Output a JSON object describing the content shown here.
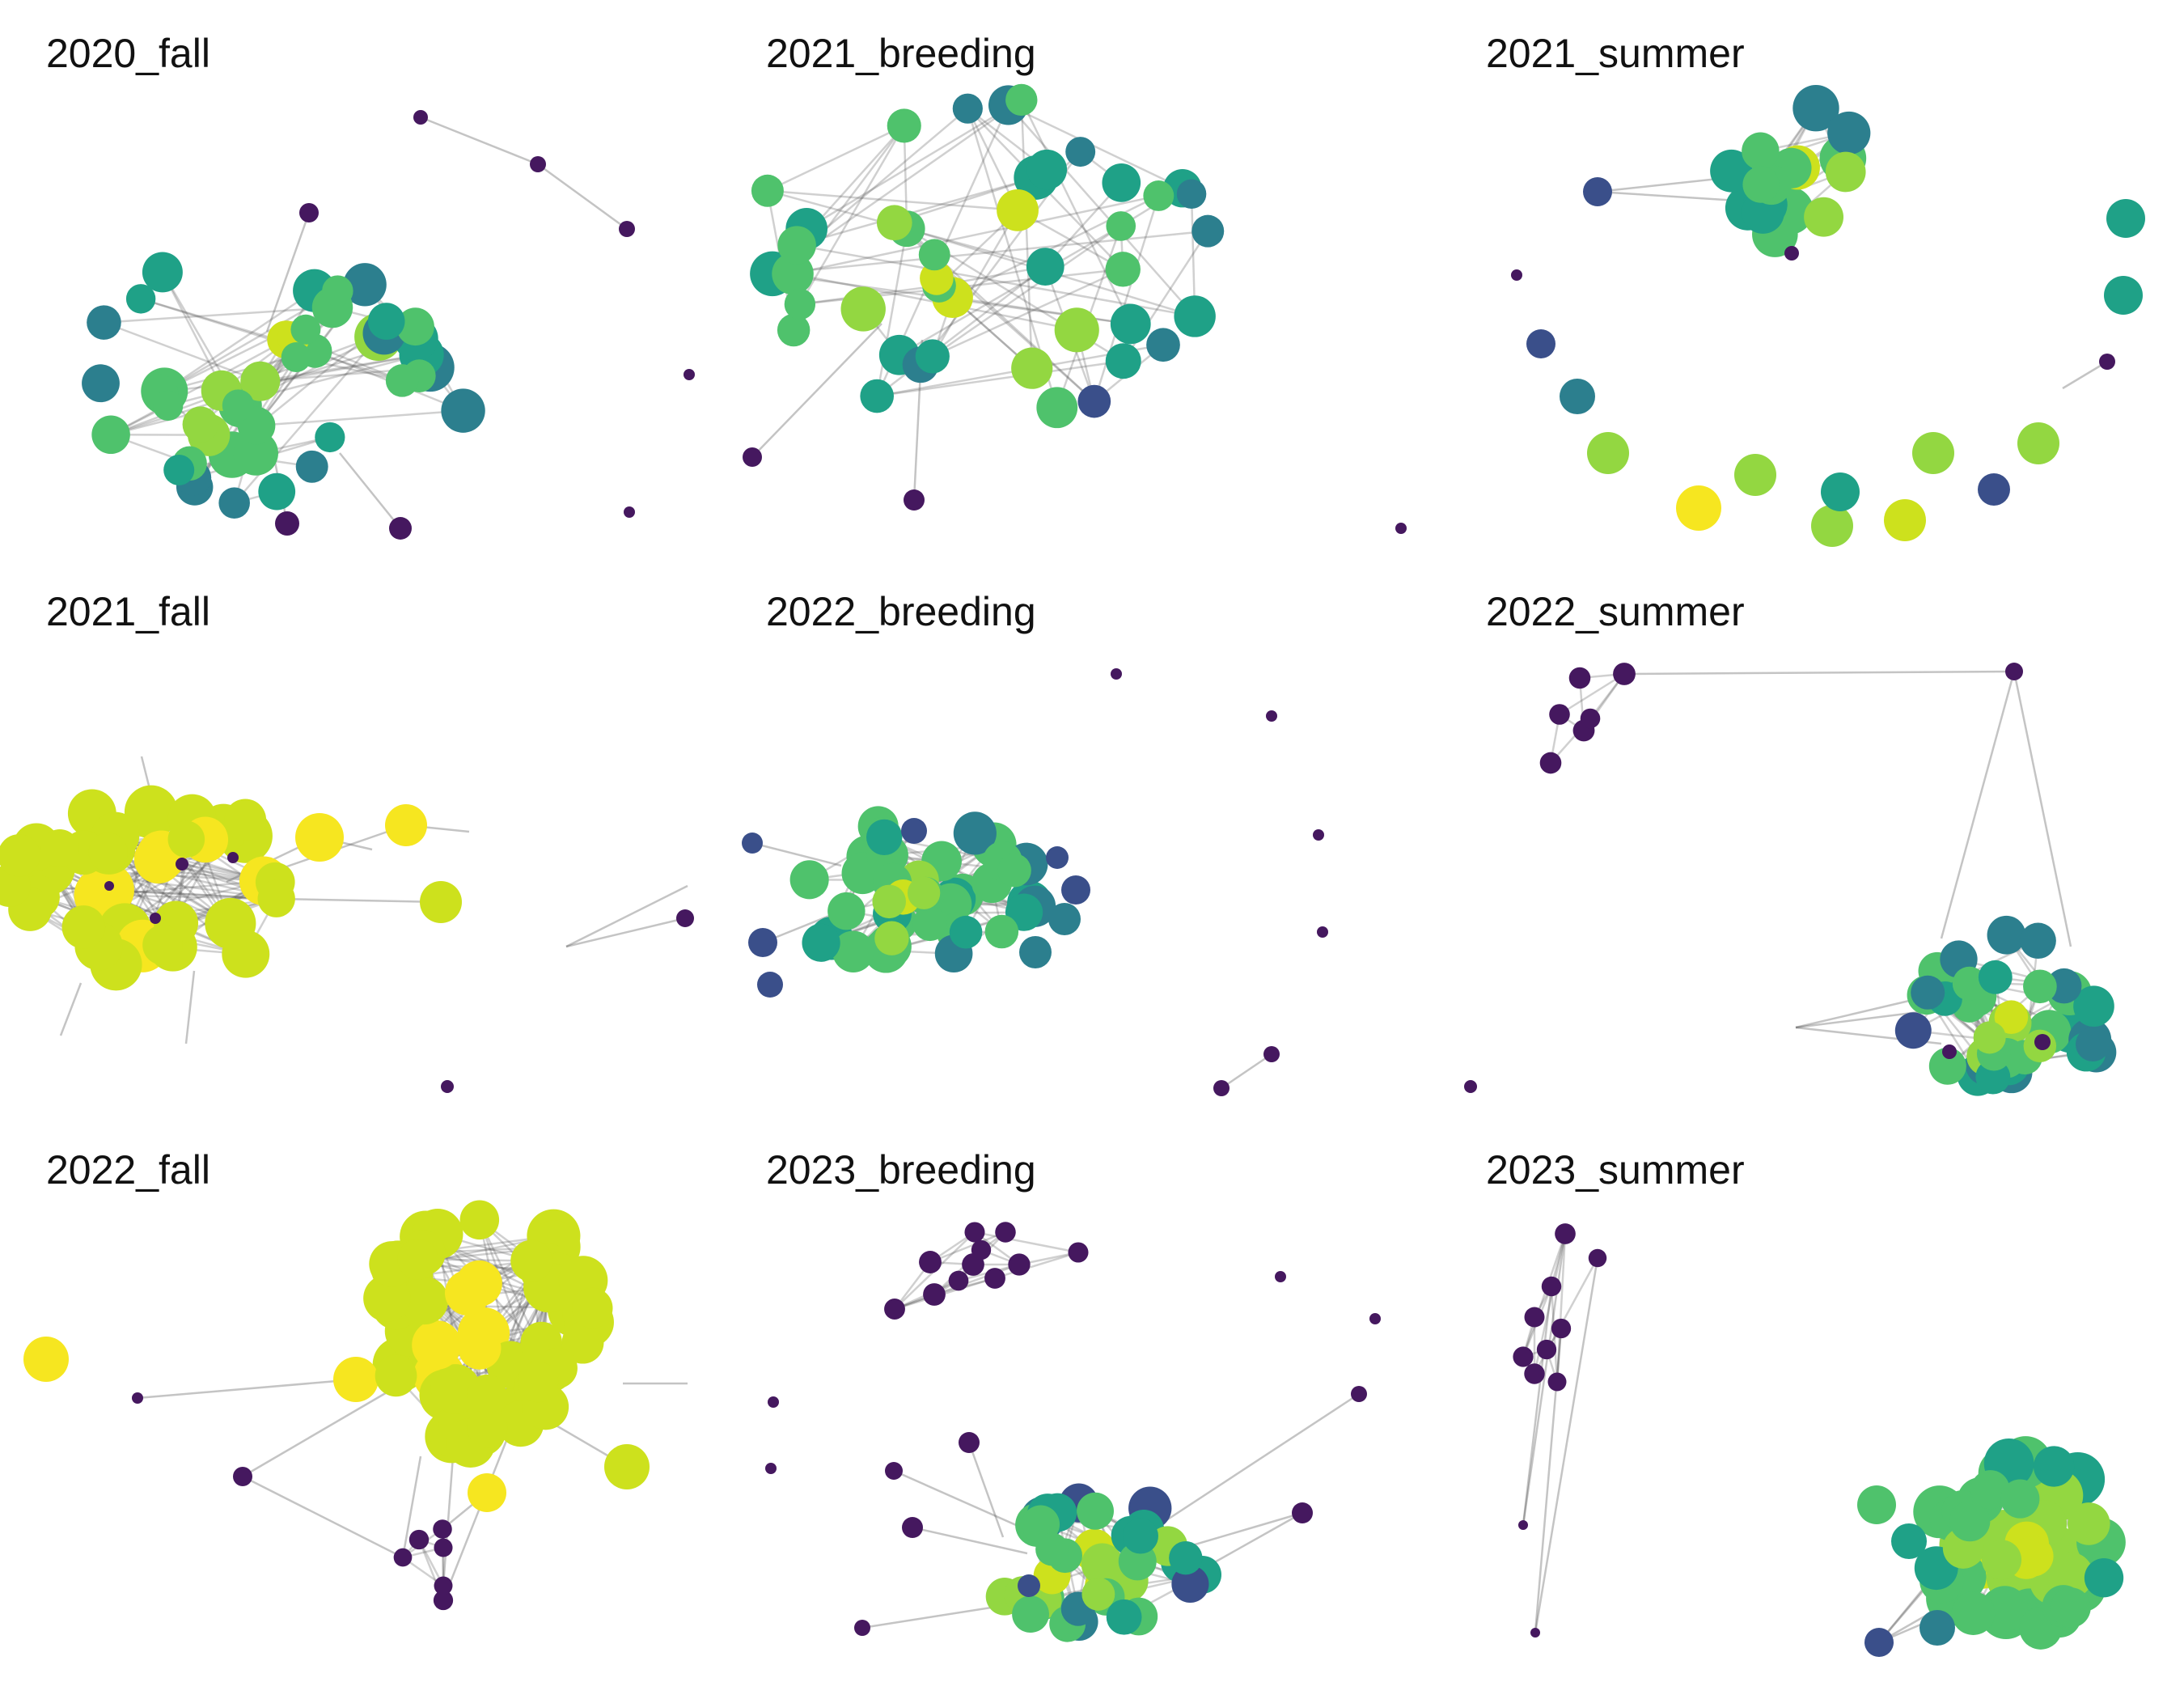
{
  "figure": {
    "panels": [
      {
        "title": "2020_fall"
      },
      {
        "title": "2021_breeding"
      },
      {
        "title": "2021_summer"
      },
      {
        "title": "2021_fall"
      },
      {
        "title": "2022_breeding"
      },
      {
        "title": "2022_summer"
      },
      {
        "title": "2022_fall"
      },
      {
        "title": "2023_breeding"
      },
      {
        "title": "2023_summer"
      }
    ]
  },
  "colors": {
    "edge": "#555555",
    "palette": [
      "#45185f",
      "#3a4f8a",
      "#2c7f8e",
      "#1fa187",
      "#4fc26c",
      "#93d741",
      "#cde11d",
      "#f6e620"
    ]
  }
}
